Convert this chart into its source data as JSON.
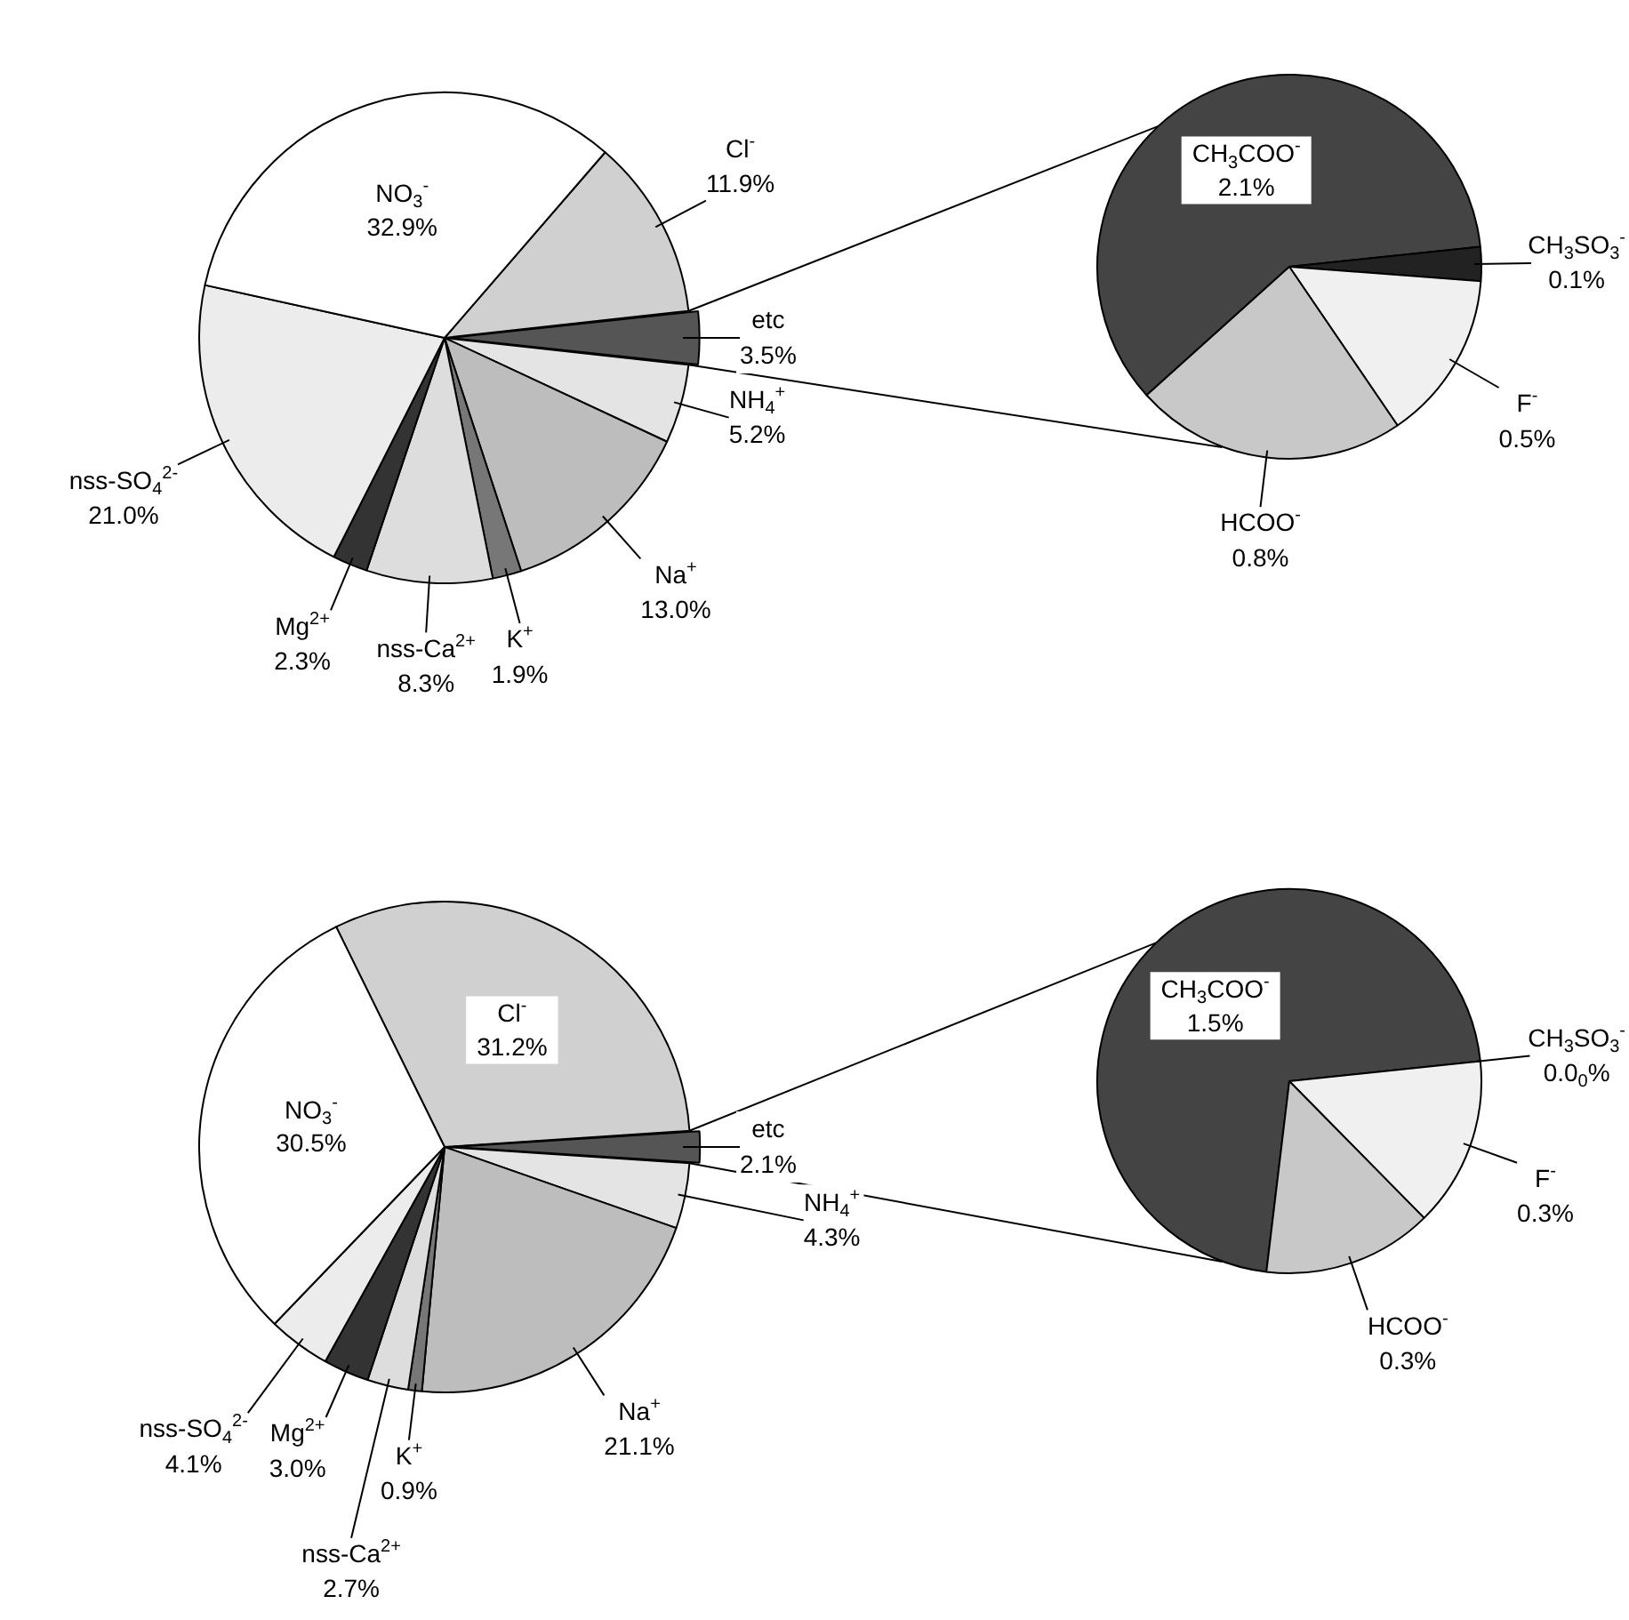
{
  "chart_data": [
    {
      "type": "pie",
      "categories": [
        "Cl$^{-}$",
        "etc",
        "NH$_{4}$$^{+}$",
        "Na$^{+}$",
        "K$^{+}$",
        "nss-Ca$^{2+}$",
        "Mg$^{2+}$",
        "nss-SO$_{4}$$^{2-}$",
        "NO$_{3}$$^{-}$"
      ],
      "values": [
        11.9,
        3.5,
        5.2,
        13.0,
        1.9,
        8.3,
        2.3,
        21.0,
        32.9
      ],
      "value_labels": [
        "11.9%",
        "3.5%",
        "5.2%",
        "13.0%",
        "1.9%",
        "8.3%",
        "2.3%",
        "21.0%",
        "32.9%"
      ],
      "colors": [
        "#d0d0d0",
        "#555555",
        "#e4e4e4",
        "#bdbdbd",
        "#777777",
        "#dddddd",
        "#333333",
        "#ececec",
        "#ffffff"
      ]
    },
    {
      "type": "pie",
      "categories": [
        "CH$_{3}$COO$^{-}$",
        "CH$_{3}$SO$_{3}$$^{-}$",
        "F$^{-}$",
        "HCOO$^{-}$"
      ],
      "values": [
        2.1,
        0.1,
        0.5,
        0.8
      ],
      "value_labels": [
        "2.1%",
        "0.1%",
        "0.5%",
        "0.8%"
      ],
      "colors": [
        "#444444",
        "#222222",
        "#f0f0f0",
        "#c8c8c8"
      ]
    },
    {
      "type": "pie",
      "categories": [
        "Cl$^{-}$",
        "etc",
        "NH$_{4}$$^{+}$",
        "Na$^{+}$",
        "K$^{+}$",
        "nss-Ca$^{2+}$",
        "Mg$^{2+}$",
        "nss-SO$_{4}$$^{2-}$",
        "NO$_{3}$$^{-}$"
      ],
      "values": [
        31.2,
        2.1,
        4.3,
        21.1,
        0.9,
        2.7,
        3.0,
        4.1,
        30.5
      ],
      "value_labels": [
        "31.2%",
        "2.1%",
        "4.3%",
        "21.1%",
        "0.9%",
        "2.7%",
        "3.0%",
        "4.1%",
        "30.5%"
      ],
      "colors": [
        "#d0d0d0",
        "#555555",
        "#e4e4e4",
        "#bdbdbd",
        "#777777",
        "#dddddd",
        "#333333",
        "#ececec",
        "#ffffff"
      ]
    },
    {
      "type": "pie",
      "categories": [
        "CH$_{3}$COO$^{-}$",
        "CH$_{3}$SO$_{3}$$^{-}$",
        "F$^{-}$",
        "HCOO$^{-}$"
      ],
      "values": [
        1.5,
        0.0,
        0.3,
        0.3
      ],
      "value_labels": [
        "1.5%",
        "0.0$_{0}$%",
        "0.3%",
        "0.3%"
      ],
      "colors": [
        "#444444",
        "#222222",
        "#f0f0f0",
        "#c8c8c8"
      ]
    }
  ]
}
